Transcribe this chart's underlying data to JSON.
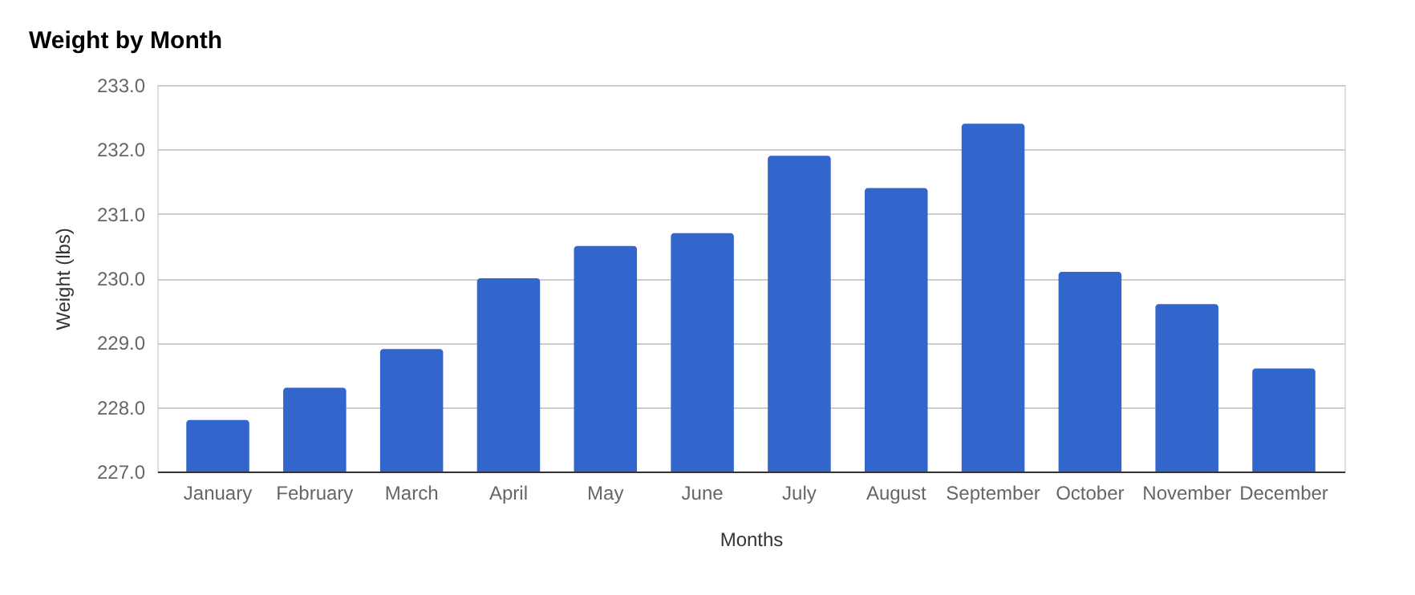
{
  "chart_data": {
    "type": "bar",
    "title": "Weight by Month",
    "xlabel": "Months",
    "ylabel": "Weight (lbs)",
    "categories": [
      "January",
      "February",
      "March",
      "April",
      "May",
      "June",
      "July",
      "August",
      "September",
      "October",
      "November",
      "December"
    ],
    "values": [
      227.8,
      228.3,
      228.9,
      230.0,
      230.5,
      230.7,
      231.9,
      231.4,
      232.4,
      230.1,
      229.6,
      228.6
    ],
    "color": "#3366cc",
    "ylim": [
      227,
      233
    ],
    "yticks": [
      {
        "value": 227,
        "label": "227.0"
      },
      {
        "value": 228,
        "label": "228.0"
      },
      {
        "value": 229,
        "label": "229.0"
      },
      {
        "value": 230,
        "label": "230.0"
      },
      {
        "value": 231,
        "label": "231.0"
      },
      {
        "value": 232,
        "label": "232.0"
      },
      {
        "value": 233,
        "label": "233.0"
      }
    ],
    "grid": "y"
  }
}
